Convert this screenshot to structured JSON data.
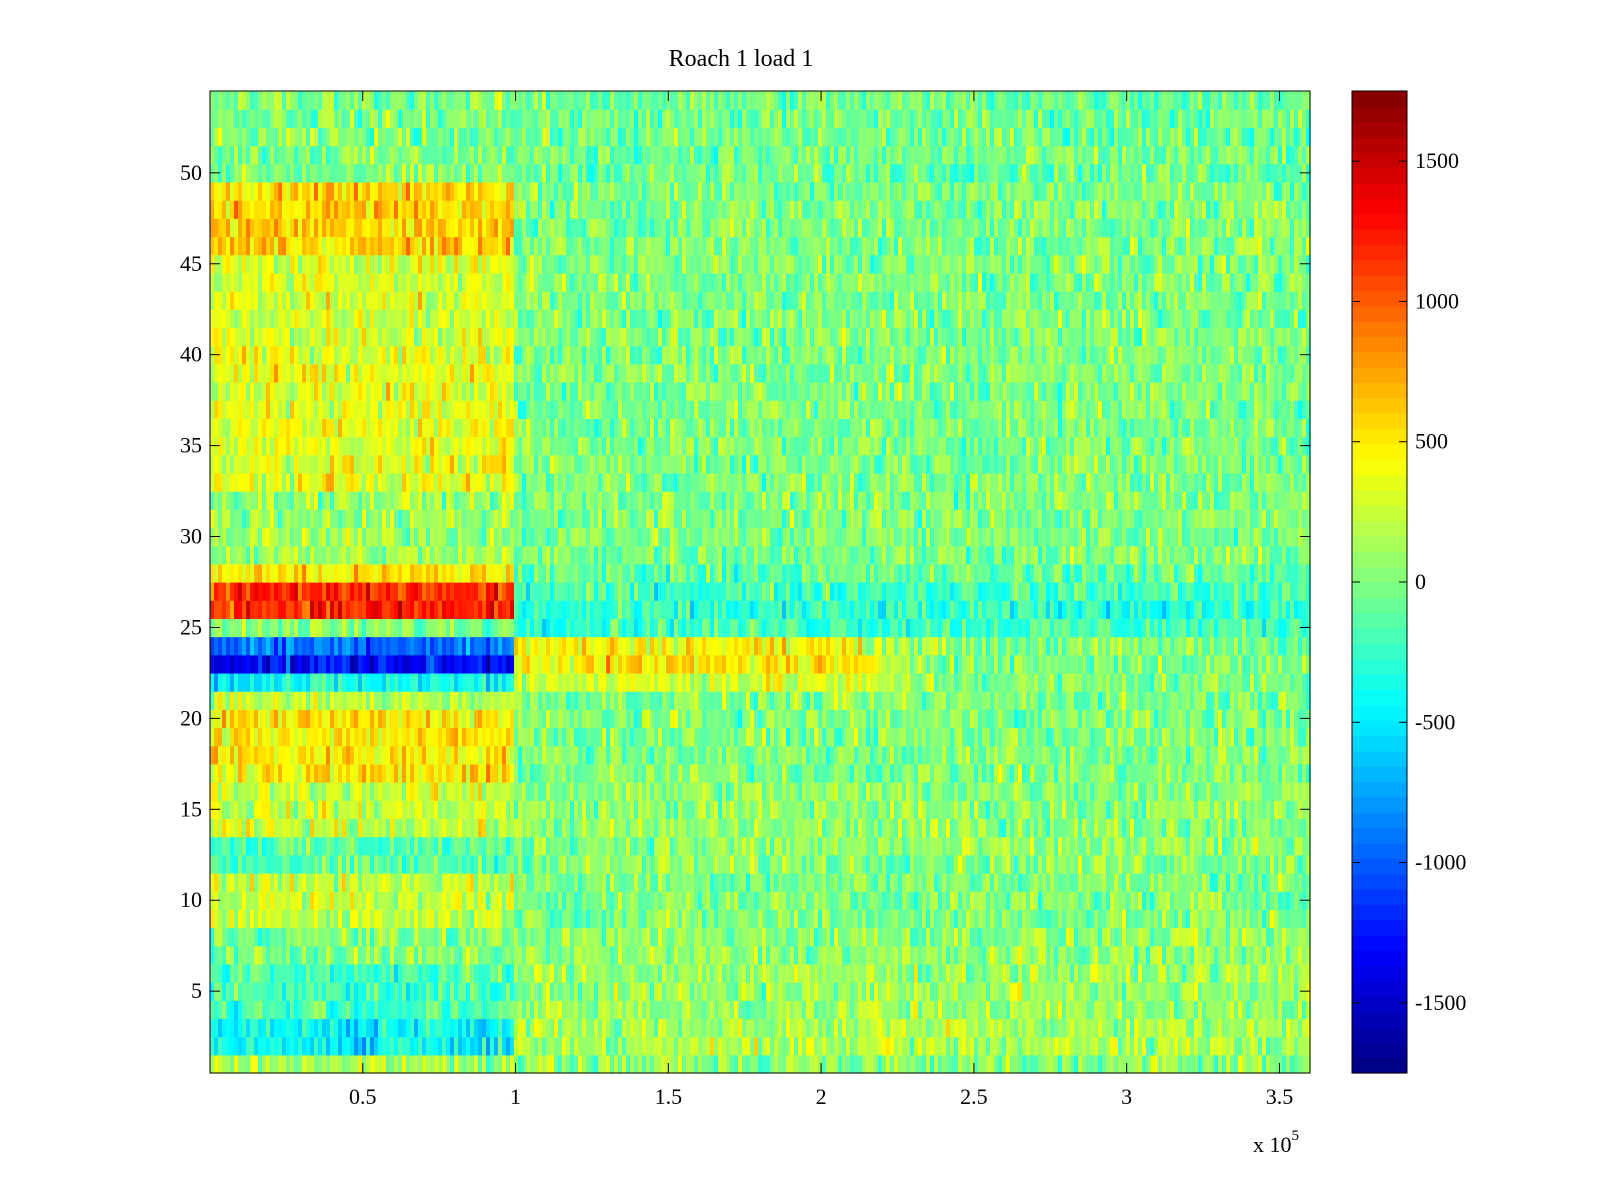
{
  "chart_data": {
    "type": "heatmap",
    "title": "Roach 1 load 1",
    "xlabel": "",
    "ylabel": "",
    "x_multiplier": "x 10",
    "x_multiplier_exp": "5",
    "xlim": [
      0,
      3.6
    ],
    "ylim": [
      0.5,
      54.5
    ],
    "x_ticks": [
      0.5,
      1,
      1.5,
      2,
      2.5,
      3,
      3.5
    ],
    "x_tick_labels": [
      "0.5",
      "1",
      "1.5",
      "2",
      "2.5",
      "3",
      "3.5"
    ],
    "y_ticks": [
      5,
      10,
      15,
      20,
      25,
      30,
      35,
      40,
      45,
      50
    ],
    "y_tick_labels": [
      "5",
      "10",
      "15",
      "20",
      "25",
      "30",
      "35",
      "40",
      "45",
      "50"
    ],
    "rows": 54,
    "colormap": "jet",
    "clim": [
      -1750,
      1750
    ],
    "colorbar": {
      "ticks": [
        1500,
        1000,
        500,
        0,
        -500,
        -1000,
        -1500
      ],
      "tick_labels": [
        "1500",
        "1000",
        "500",
        "0",
        "-500",
        "-1000",
        "-1500"
      ]
    },
    "row_bands": [
      {
        "rows": [
          1,
          1
        ],
        "early": 150,
        "late": 50
      },
      {
        "rows": [
          2,
          3
        ],
        "early": -450,
        "late": 150
      },
      {
        "rows": [
          4,
          6
        ],
        "early": -200,
        "late": 100
      },
      {
        "rows": [
          7,
          8
        ],
        "early": 0,
        "late": 50
      },
      {
        "rows": [
          9,
          11
        ],
        "early": 250,
        "late": 0
      },
      {
        "rows": [
          12,
          13
        ],
        "early": -150,
        "late": 50
      },
      {
        "rows": [
          14,
          16
        ],
        "early": 250,
        "late": 50
      },
      {
        "rows": [
          17,
          20
        ],
        "early": 500,
        "late": 0
      },
      {
        "rows": [
          21,
          21
        ],
        "early": 200,
        "late": 0
      },
      {
        "rows": [
          22,
          22
        ],
        "early": -400,
        "late": 300
      },
      {
        "rows": [
          23,
          23
        ],
        "early": -1300,
        "late": 500
      },
      {
        "rows": [
          24,
          24
        ],
        "early": -900,
        "late": 450
      },
      {
        "rows": [
          25,
          25
        ],
        "early": 0,
        "late": -200
      },
      {
        "rows": [
          26,
          26
        ],
        "early": 1200,
        "late": -300
      },
      {
        "rows": [
          27,
          27
        ],
        "early": 1150,
        "late": -200
      },
      {
        "rows": [
          28,
          28
        ],
        "early": 500,
        "late": -100
      },
      {
        "rows": [
          29,
          32
        ],
        "early": 100,
        "late": 0
      },
      {
        "rows": [
          33,
          40
        ],
        "early": 350,
        "late": 0
      },
      {
        "rows": [
          41,
          45
        ],
        "early": 300,
        "late": 0
      },
      {
        "rows": [
          46,
          49
        ],
        "early": 600,
        "late": 0
      },
      {
        "rows": [
          50,
          54
        ],
        "early": 0,
        "late": -50
      }
    ],
    "early_segment_end_x": 1.0
  }
}
